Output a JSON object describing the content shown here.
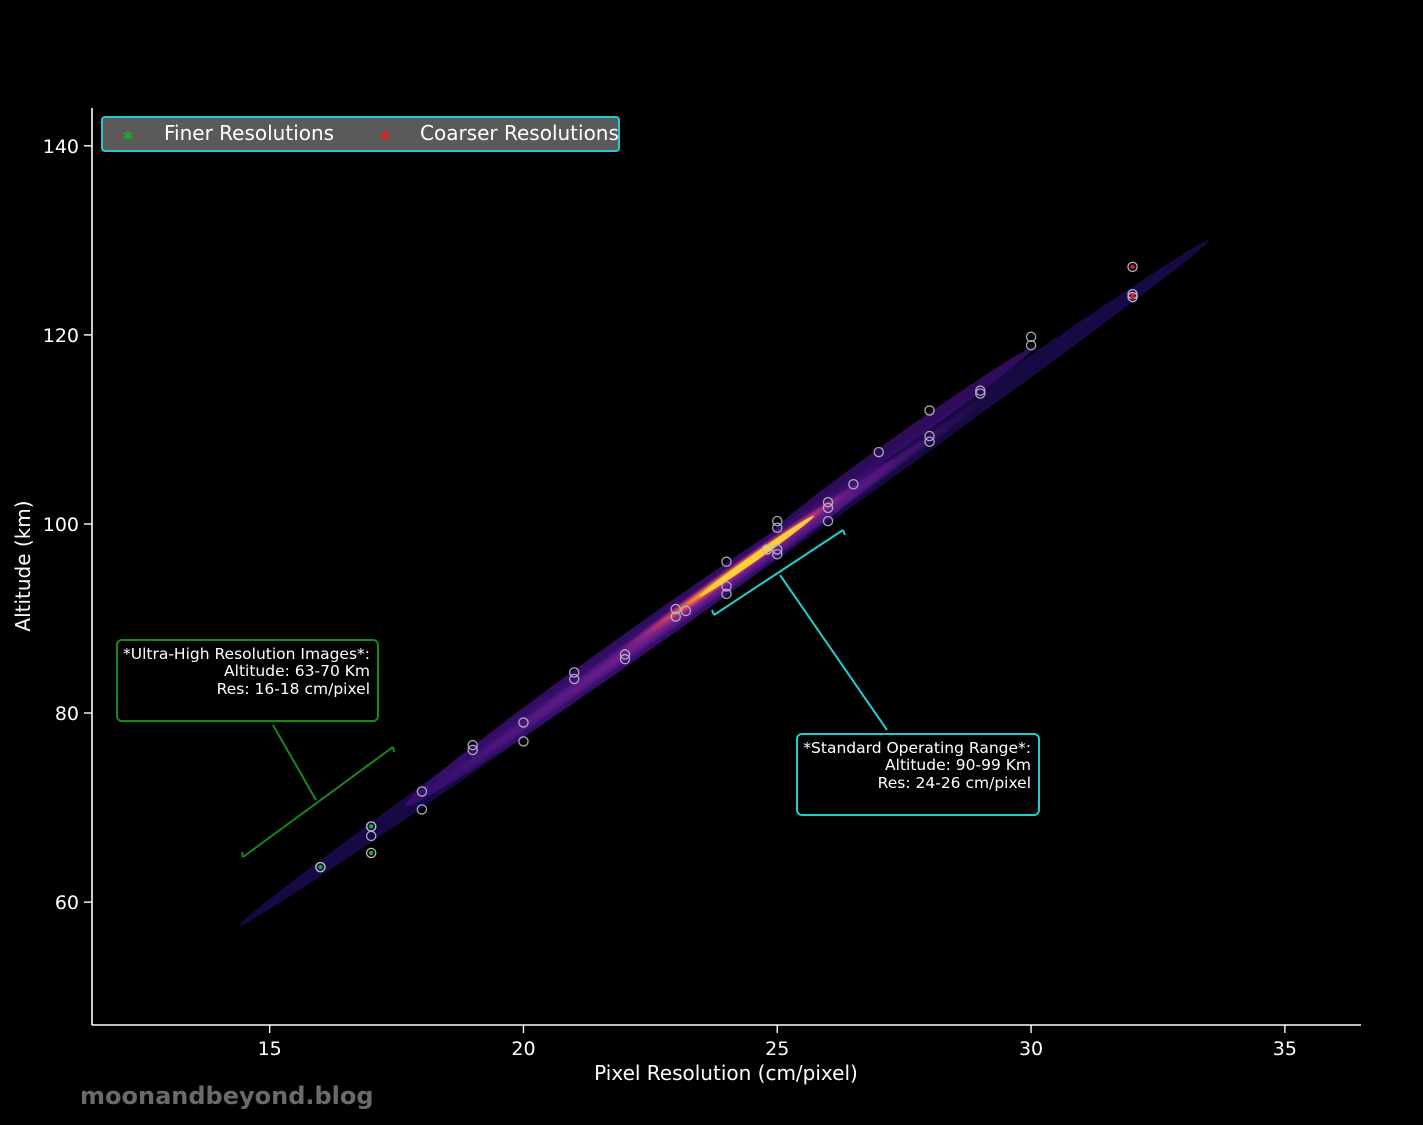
{
  "chart_data": {
    "type": "scatter",
    "xlabel": "Pixel Resolution (cm/pixel)",
    "ylabel": "Altitude (km)",
    "xlim": [
      11.5,
      36.5
    ],
    "ylim": [
      47,
      144
    ],
    "x_ticks": [
      15,
      20,
      25,
      30,
      35
    ],
    "y_ticks": [
      60,
      80,
      100,
      120,
      140
    ],
    "grid": false,
    "legend_position": "top-left",
    "density_shading": "kde contours along the fitted line (dark purple to yellow)",
    "series": [
      {
        "name": "Finer Resolutions",
        "color": "#1faa1f",
        "points": [
          [
            17,
            65.2
          ],
          [
            17,
            68.0
          ],
          [
            16,
            63.7
          ]
        ]
      },
      {
        "name": "Coarser Resolutions",
        "color": "#e02020",
        "points": [
          [
            32,
            127.2
          ],
          [
            32,
            124.3
          ],
          [
            32,
            124.0
          ]
        ]
      },
      {
        "name": "",
        "color": "#b9b9c8",
        "points": [
          [
            16,
            63.7
          ],
          [
            17,
            67.0
          ],
          [
            17,
            68.0
          ],
          [
            18,
            69.8
          ],
          [
            18,
            71.7
          ],
          [
            19,
            76.1
          ],
          [
            19,
            76.6
          ],
          [
            20,
            77.0
          ],
          [
            20,
            79.0
          ],
          [
            21,
            83.6
          ],
          [
            21,
            84.3
          ],
          [
            22,
            85.7
          ],
          [
            22,
            86.2
          ],
          [
            23,
            90.2
          ],
          [
            23,
            91.0
          ],
          [
            23.2,
            90.8
          ],
          [
            24,
            92.6
          ],
          [
            24,
            93.4
          ],
          [
            24,
            96.0
          ],
          [
            24.8,
            97.3
          ],
          [
            25,
            96.8
          ],
          [
            25,
            97.3
          ],
          [
            25,
            99.6
          ],
          [
            25,
            100.3
          ],
          [
            26,
            100.3
          ],
          [
            26,
            101.7
          ],
          [
            26,
            102.3
          ],
          [
            26.5,
            104.2
          ],
          [
            27,
            107.6
          ],
          [
            28,
            108.7
          ],
          [
            28,
            109.3
          ],
          [
            28,
            112.0
          ],
          [
            29,
            113.8
          ],
          [
            29,
            114.1
          ],
          [
            30,
            118.9
          ],
          [
            30,
            119.8
          ]
        ]
      }
    ],
    "annotations": [
      {
        "title": "*Ultra-High Resolution Images*:",
        "line1": "Altitude: 63-70 Km",
        "line2": "Res: 16-18 cm/pixel",
        "color": "#168a16"
      },
      {
        "title": "*Standard Operating Range*:",
        "line1": "Altitude: 90-99 Km",
        "line2": "Res: 24-26 cm/pixel",
        "color": "#22cccc"
      }
    ]
  },
  "watermark": "moonandbeyond.blog"
}
